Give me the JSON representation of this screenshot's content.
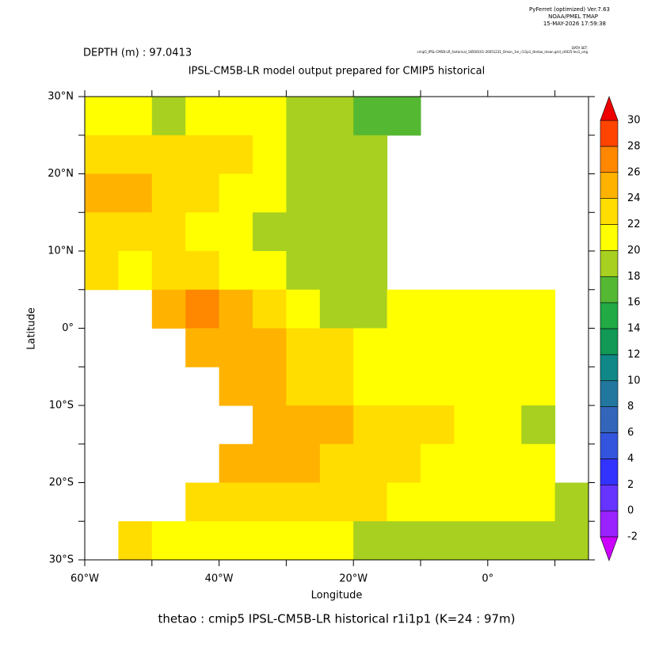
{
  "header": {
    "program": "PyFerret (optimized) Ver.7.63",
    "org": "NOAA/PMEL TMAP",
    "date": "15-MAY-2026 17:59:38",
    "dataset_label": "DATA SET:",
    "dataset": "cmip5_IPSL-CM5B-LR_historical_18500101-20051231_Omon_1m_r1i1p1_thetao_mean.grid_clt025-lev1_orig"
  },
  "chart_data": {
    "type": "heatmap",
    "subtitle": "DEPTH (m) : 97.0413",
    "title": "IPSL-CM5B-LR model output prepared for CMIP5 historical",
    "x_label": "Longitude",
    "y_label": "Latitude",
    "footer": "thetao : cmip5 IPSL-CM5B-LR historical r1i1p1    (K=24 : 97m)",
    "x": [
      -57.5,
      -52.5,
      -47.5,
      -42.5,
      -37.5,
      -32.5,
      -27.5,
      -22.5,
      -17.5,
      -12.5,
      -7.5,
      -2.5,
      2.5,
      7.5,
      12.5
    ],
    "y": [
      27.5,
      22.5,
      17.5,
      12.5,
      7.5,
      2.5,
      -2.5,
      -7.5,
      -12.5,
      -17.5,
      -22.5,
      -27.5
    ],
    "values": [
      [
        21,
        20,
        19,
        20,
        20,
        20,
        19,
        18,
        17,
        16,
        null,
        null,
        null,
        null,
        null
      ],
      [
        23,
        22,
        22,
        22,
        22,
        21,
        19,
        18,
        18,
        null,
        null,
        null,
        null,
        null,
        null
      ],
      [
        24,
        24,
        23,
        22,
        21,
        20,
        19,
        19,
        18,
        null,
        null,
        null,
        null,
        null,
        null
      ],
      [
        23,
        23,
        22,
        21,
        20,
        19,
        19,
        18,
        19,
        null,
        null,
        null,
        null,
        null,
        null
      ],
      [
        23,
        21,
        22,
        22,
        21,
        20,
        19,
        19,
        19,
        null,
        null,
        null,
        null,
        null,
        null
      ],
      [
        null,
        null,
        24,
        26,
        25,
        23,
        21,
        19,
        19,
        21,
        21,
        21,
        21,
        21,
        null
      ],
      [
        null,
        null,
        null,
        25,
        24,
        24,
        23,
        22,
        21,
        21,
        21,
        21,
        21,
        21,
        null
      ],
      [
        null,
        null,
        null,
        null,
        24,
        24,
        23,
        22,
        21,
        21,
        21,
        21,
        21,
        21,
        null
      ],
      [
        null,
        null,
        null,
        null,
        null,
        25,
        25,
        24,
        23,
        23,
        22,
        21,
        20,
        19,
        null
      ],
      [
        null,
        null,
        null,
        null,
        24,
        24,
        24,
        23,
        23,
        22,
        21,
        21,
        21,
        20,
        null
      ],
      [
        null,
        null,
        null,
        22,
        23,
        23,
        23,
        22,
        22,
        21,
        21,
        21,
        20,
        20,
        19
      ],
      [
        null,
        22,
        21,
        21,
        21,
        21,
        20,
        20,
        19,
        19,
        19,
        19,
        19,
        18,
        18
      ]
    ],
    "xlim": [
      -60,
      15
    ],
    "ylim": [
      -30,
      30
    ],
    "xticks": [
      {
        "value": -60,
        "label": "60°W"
      },
      {
        "value": -40,
        "label": "40°W"
      },
      {
        "value": -20,
        "label": "20°W"
      },
      {
        "value": 0,
        "label": "0°"
      }
    ],
    "xminorticks": [
      -50,
      -30,
      -10,
      10
    ],
    "yticks": [
      {
        "value": 30,
        "label": "30°N"
      },
      {
        "value": 20,
        "label": "20°N"
      },
      {
        "value": 10,
        "label": "10°N"
      },
      {
        "value": 0,
        "label": "0°"
      },
      {
        "value": -10,
        "label": "10°S"
      },
      {
        "value": -20,
        "label": "20°S"
      },
      {
        "value": -30,
        "label": "30°S"
      }
    ],
    "yminorticks": [
      25,
      15,
      5,
      -5,
      -15,
      -25
    ],
    "colorbar": {
      "levels": [
        -2,
        0,
        2,
        4,
        6,
        8,
        10,
        12,
        14,
        16,
        18,
        20,
        22,
        24,
        26,
        28,
        30
      ],
      "colors": [
        "#cc00ff",
        "#9922ff",
        "#6633ff",
        "#3333ff",
        "#3355dd",
        "#3366bb",
        "#22779f",
        "#118888",
        "#119955",
        "#22aa44",
        "#55b833",
        "#a8d020",
        "#ffff00",
        "#ffdd00",
        "#ffb300",
        "#ff8800",
        "#ff4400",
        "#ee0000"
      ]
    }
  }
}
